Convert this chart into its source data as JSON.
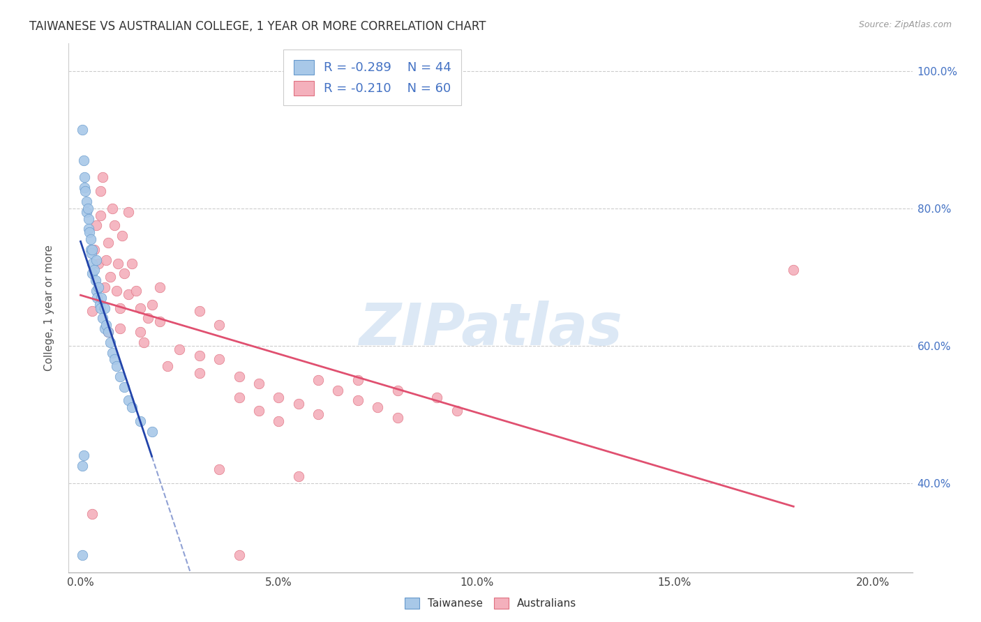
{
  "title": "TAIWANESE VS AUSTRALIAN COLLEGE, 1 YEAR OR MORE CORRELATION CHART",
  "source": "Source: ZipAtlas.com",
  "ylabel": "College, 1 year or more",
  "x_tick_labels": [
    "0.0%",
    "5.0%",
    "10.0%",
    "15.0%",
    "20.0%"
  ],
  "x_tick_values": [
    0.0,
    5.0,
    10.0,
    15.0,
    20.0
  ],
  "y_tick_labels": [
    "40.0%",
    "60.0%",
    "80.0%",
    "100.0%"
  ],
  "y_tick_values": [
    40.0,
    60.0,
    80.0,
    100.0
  ],
  "xlim": [
    -0.3,
    21.0
  ],
  "ylim": [
    27.0,
    104.0
  ],
  "legend_R1": "-0.289",
  "legend_N1": "44",
  "legend_R2": "-0.210",
  "legend_N2": "60",
  "taiwanese_fill": "#a8c8e8",
  "australian_fill": "#f4b0bc",
  "taiwanese_edge": "#6699cc",
  "australian_edge": "#e07080",
  "reg_tw_color": "#2244aa",
  "reg_au_color": "#e05070",
  "watermark_color": "#dce8f5",
  "legend_color": "#4472c4",
  "tw_points": [
    [
      0.05,
      91.5
    ],
    [
      0.08,
      87.0
    ],
    [
      0.1,
      84.5
    ],
    [
      0.1,
      83.0
    ],
    [
      0.12,
      82.5
    ],
    [
      0.15,
      81.0
    ],
    [
      0.15,
      79.5
    ],
    [
      0.18,
      80.0
    ],
    [
      0.2,
      78.5
    ],
    [
      0.2,
      77.0
    ],
    [
      0.22,
      76.5
    ],
    [
      0.25,
      75.5
    ],
    [
      0.25,
      74.0
    ],
    [
      0.28,
      73.5
    ],
    [
      0.3,
      74.0
    ],
    [
      0.3,
      72.0
    ],
    [
      0.3,
      70.5
    ],
    [
      0.35,
      71.0
    ],
    [
      0.38,
      69.5
    ],
    [
      0.4,
      72.5
    ],
    [
      0.4,
      68.0
    ],
    [
      0.42,
      67.0
    ],
    [
      0.45,
      68.5
    ],
    [
      0.48,
      66.0
    ],
    [
      0.5,
      65.5
    ],
    [
      0.52,
      67.0
    ],
    [
      0.55,
      64.0
    ],
    [
      0.6,
      65.5
    ],
    [
      0.6,
      62.5
    ],
    [
      0.65,
      63.0
    ],
    [
      0.7,
      62.0
    ],
    [
      0.75,
      60.5
    ],
    [
      0.8,
      59.0
    ],
    [
      0.85,
      58.0
    ],
    [
      0.9,
      57.0
    ],
    [
      1.0,
      55.5
    ],
    [
      1.1,
      54.0
    ],
    [
      1.2,
      52.0
    ],
    [
      1.3,
      51.0
    ],
    [
      1.5,
      49.0
    ],
    [
      1.8,
      47.5
    ],
    [
      0.05,
      42.5
    ],
    [
      0.08,
      44.0
    ],
    [
      0.05,
      29.5
    ]
  ],
  "au_points": [
    [
      0.3,
      65.0
    ],
    [
      0.35,
      74.0
    ],
    [
      0.4,
      77.5
    ],
    [
      0.45,
      72.0
    ],
    [
      0.5,
      82.5
    ],
    [
      0.5,
      79.0
    ],
    [
      0.55,
      84.5
    ],
    [
      0.6,
      68.5
    ],
    [
      0.65,
      72.5
    ],
    [
      0.7,
      75.0
    ],
    [
      0.7,
      62.0
    ],
    [
      0.75,
      70.0
    ],
    [
      0.8,
      80.0
    ],
    [
      0.85,
      77.5
    ],
    [
      0.9,
      68.0
    ],
    [
      0.95,
      72.0
    ],
    [
      1.0,
      65.5
    ],
    [
      1.0,
      62.5
    ],
    [
      1.05,
      76.0
    ],
    [
      1.1,
      70.5
    ],
    [
      1.2,
      79.5
    ],
    [
      1.2,
      67.5
    ],
    [
      1.3,
      72.0
    ],
    [
      1.4,
      68.0
    ],
    [
      1.5,
      65.5
    ],
    [
      1.5,
      62.0
    ],
    [
      1.6,
      60.5
    ],
    [
      1.7,
      64.0
    ],
    [
      1.8,
      66.0
    ],
    [
      2.0,
      68.5
    ],
    [
      2.0,
      63.5
    ],
    [
      2.2,
      57.0
    ],
    [
      2.5,
      59.5
    ],
    [
      3.0,
      65.0
    ],
    [
      3.0,
      58.5
    ],
    [
      3.0,
      56.0
    ],
    [
      3.5,
      63.0
    ],
    [
      3.5,
      58.0
    ],
    [
      4.0,
      55.5
    ],
    [
      4.0,
      52.5
    ],
    [
      4.5,
      54.5
    ],
    [
      4.5,
      50.5
    ],
    [
      5.0,
      52.5
    ],
    [
      5.0,
      49.0
    ],
    [
      5.5,
      51.5
    ],
    [
      6.0,
      50.0
    ],
    [
      6.0,
      55.0
    ],
    [
      6.5,
      53.5
    ],
    [
      7.0,
      55.0
    ],
    [
      7.0,
      52.0
    ],
    [
      7.5,
      51.0
    ],
    [
      8.0,
      53.5
    ],
    [
      8.0,
      49.5
    ],
    [
      9.0,
      52.5
    ],
    [
      9.5,
      50.5
    ],
    [
      18.0,
      71.0
    ],
    [
      0.3,
      35.5
    ],
    [
      4.0,
      29.5
    ],
    [
      3.5,
      42.0
    ],
    [
      5.5,
      41.0
    ]
  ]
}
